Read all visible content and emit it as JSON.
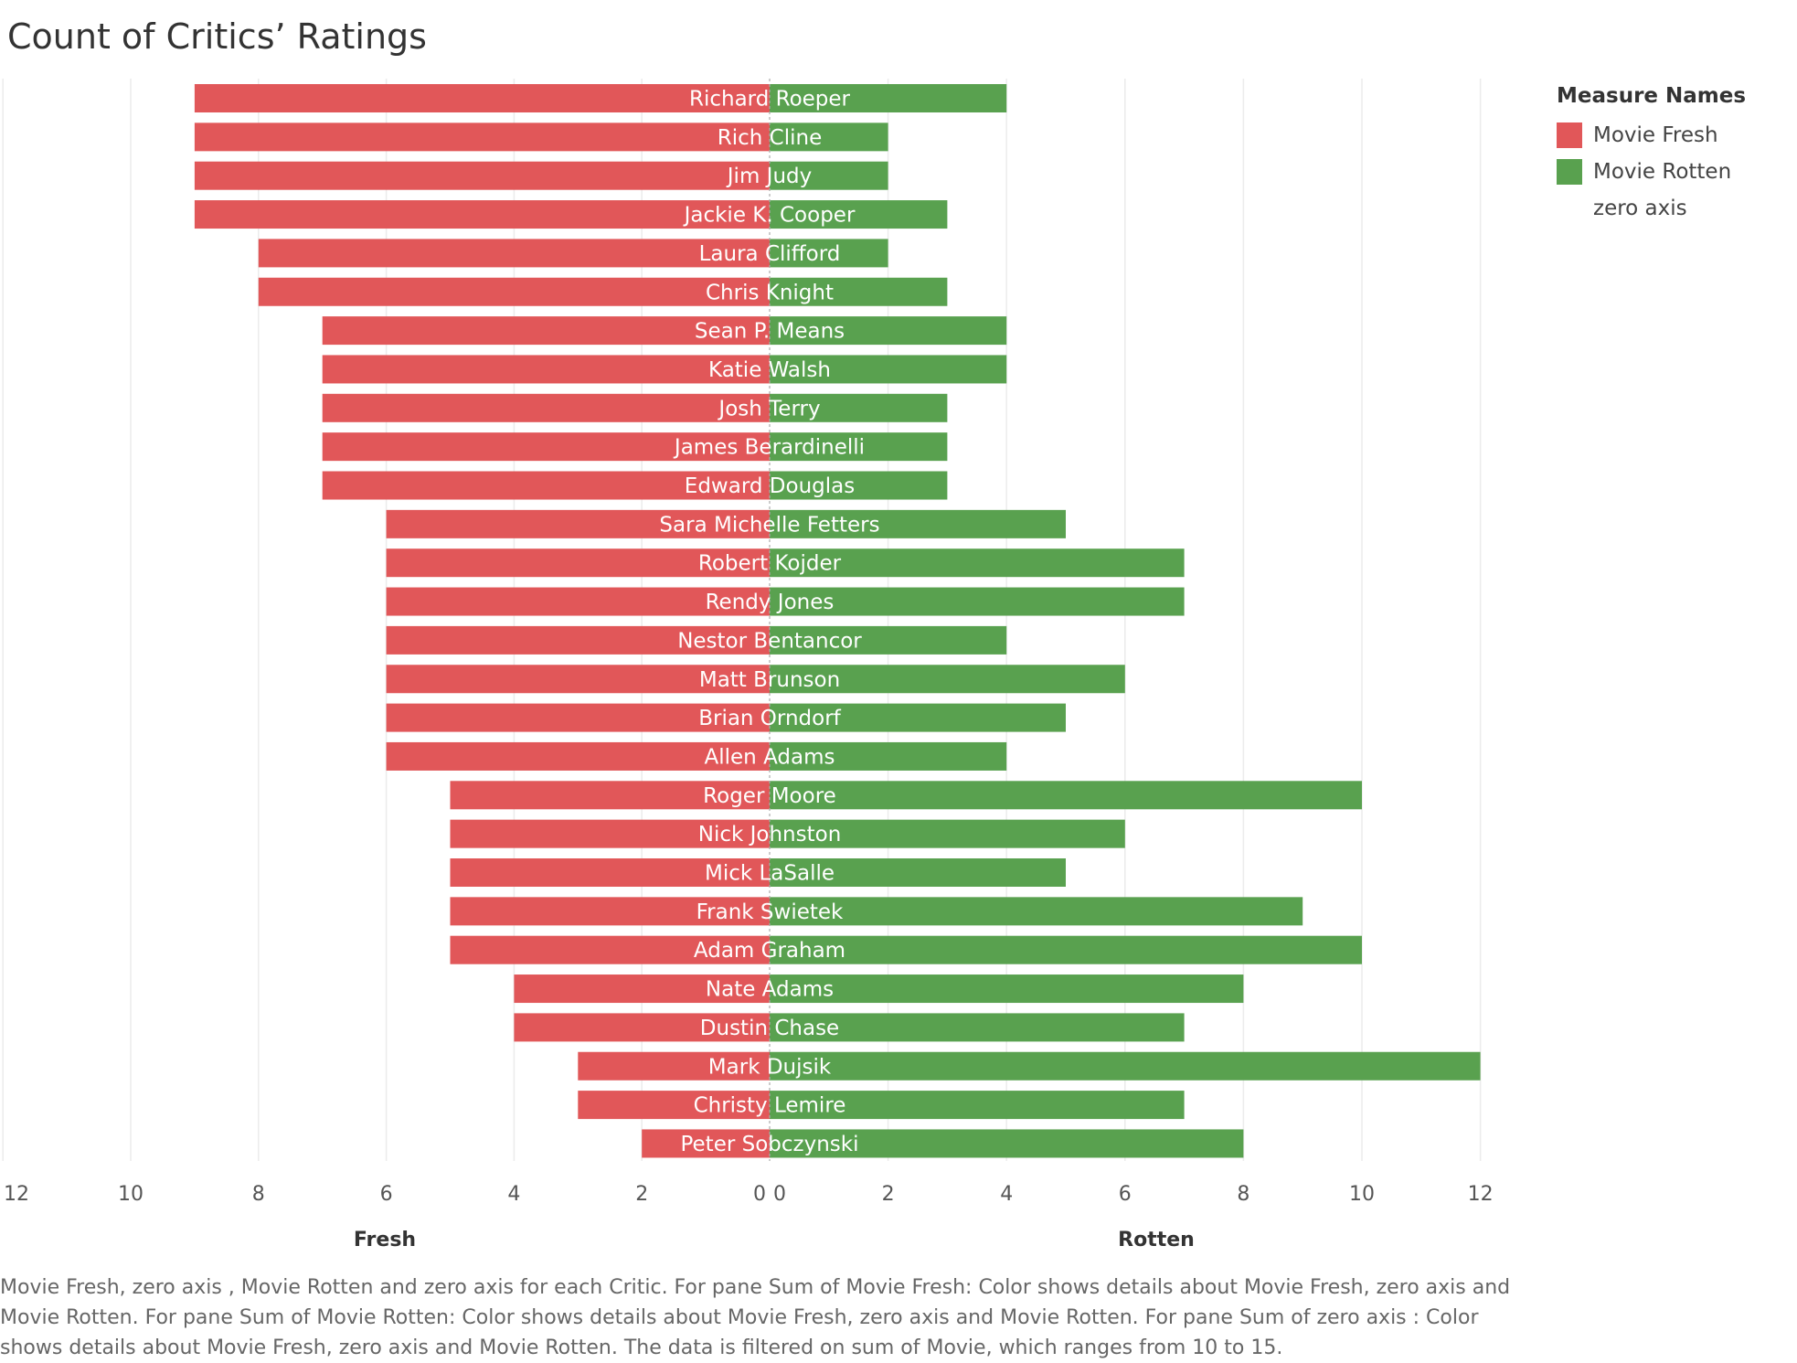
{
  "chart_data": {
    "type": "bar",
    "title": "Count of Critics’ Ratings",
    "orientation": "horizontal-diverging",
    "categories": [
      "Richard Roeper",
      "Rich Cline",
      "Jim Judy",
      "Jackie K. Cooper",
      "Laura Clifford",
      "Chris Knight",
      "Sean P. Means",
      "Katie Walsh",
      "Josh Terry",
      "James Berardinelli",
      "Edward Douglas",
      "Sara Michelle Fetters",
      "Robert Kojder",
      "Rendy Jones",
      "Nestor Bentancor",
      "Matt Brunson",
      "Brian Orndorf",
      "Allen Adams",
      "Roger Moore",
      "Nick Johnston",
      "Mick LaSalle",
      "Frank Swietek",
      "Adam Graham",
      "Nate Adams",
      "Dustin Chase",
      "Mark Dujsik",
      "Christy Lemire",
      "Peter Sobczynski"
    ],
    "series": [
      {
        "name": "Movie Fresh",
        "color": "#e15759",
        "values": [
          9,
          9,
          9,
          9,
          8,
          8,
          7,
          7,
          7,
          7,
          7,
          6,
          6,
          6,
          6,
          6,
          6,
          6,
          5,
          5,
          5,
          5,
          5,
          4,
          4,
          3,
          3,
          2
        ]
      },
      {
        "name": "Movie Rotten",
        "color": "#59a14f",
        "values": [
          4,
          2,
          2,
          3,
          2,
          3,
          4,
          4,
          3,
          3,
          3,
          5,
          7,
          7,
          4,
          6,
          5,
          4,
          10,
          6,
          5,
          9,
          10,
          8,
          7,
          12,
          7,
          8
        ]
      }
    ],
    "left_axis": {
      "label": "Fresh",
      "ticks": [
        "12",
        "10",
        "8",
        "6",
        "4",
        "2",
        "0"
      ],
      "range": [
        0,
        12
      ]
    },
    "right_axis": {
      "label": "Rotten",
      "ticks": [
        "0",
        "2",
        "4",
        "6",
        "8",
        "10",
        "12"
      ],
      "range": [
        0,
        12
      ]
    },
    "grid": true,
    "zero_line": "dashed",
    "legend": {
      "title": "Measure Names",
      "position": "right",
      "items": [
        {
          "label": "Movie Fresh",
          "color": "#e15759"
        },
        {
          "label": "Movie Rotten",
          "color": "#59a14f"
        },
        {
          "label": "zero axis",
          "color": ""
        }
      ]
    }
  },
  "caption": "Movie Fresh, zero axis , Movie Rotten and zero axis  for each Critic.  For pane Sum of Movie Fresh:  Color shows details about Movie Fresh, zero axis  and Movie Rotten.  For pane Sum of Movie Rotten:  Color shows details about Movie Fresh, zero axis  and Movie Rotten.  For pane Sum of zero axis :  Color shows details about Movie Fresh, zero axis  and Movie Rotten. The data is filtered on sum of Movie, which ranges from 10 to 15."
}
